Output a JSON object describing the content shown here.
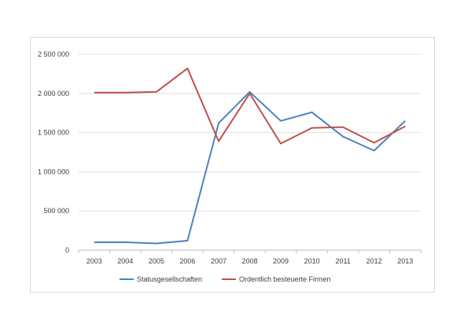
{
  "chart_data": {
    "type": "line",
    "title": "",
    "xlabel": "",
    "ylabel": "",
    "x": [
      "2003",
      "2004",
      "2005",
      "2006",
      "2007",
      "2008",
      "2009",
      "2010",
      "2011",
      "2012",
      "2013"
    ],
    "ylim": [
      0,
      2500000
    ],
    "yticks": [
      0,
      500000,
      1000000,
      1500000,
      2000000,
      2500000
    ],
    "ytick_labels": [
      "0",
      "500 000",
      "1 000 000",
      "1 500 000",
      "2 000 000",
      "2 500 000"
    ],
    "grid": true,
    "legend_position": "bottom",
    "series": [
      {
        "name": "Statusgesellschaften",
        "color": "#4f81bd",
        "values": [
          100000,
          100000,
          85000,
          120000,
          1620000,
          2020000,
          1650000,
          1760000,
          1450000,
          1270000,
          1650000
        ]
      },
      {
        "name": "Ordentlich besteuerte Firmen",
        "color": "#c0504d",
        "values": [
          2010000,
          2010000,
          2020000,
          2320000,
          1390000,
          2000000,
          1360000,
          1560000,
          1570000,
          1370000,
          1580000
        ]
      }
    ]
  }
}
